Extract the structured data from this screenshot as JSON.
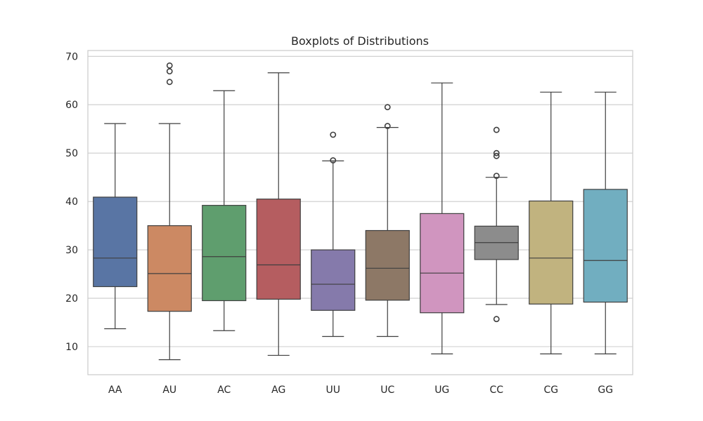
{
  "chart_data": {
    "type": "boxplot",
    "title": "Boxplots of Distributions",
    "xlabel": "",
    "ylabel": "",
    "ylim": [
      4.2,
      71.2
    ],
    "yticks": [
      10,
      20,
      30,
      40,
      50,
      60,
      70
    ],
    "grid": "horizontal",
    "categories": [
      "AA",
      "AU",
      "AC",
      "AG",
      "UU",
      "UC",
      "UG",
      "CC",
      "CG",
      "GG"
    ],
    "series": [
      {
        "category": "AA",
        "color": "#5975a4",
        "whisker_low": 13.7,
        "q1": 22.4,
        "median": 28.3,
        "q3": 40.9,
        "whisker_high": 56.1,
        "outliers": []
      },
      {
        "category": "AU",
        "color": "#cc8963",
        "whisker_low": 7.3,
        "q1": 17.3,
        "median": 25.1,
        "q3": 35.0,
        "whisker_high": 56.1,
        "outliers": [
          64.7,
          66.9,
          68.1
        ]
      },
      {
        "category": "AC",
        "color": "#5f9e6e",
        "whisker_low": 13.3,
        "q1": 19.5,
        "median": 28.6,
        "q3": 39.2,
        "whisker_high": 62.9,
        "outliers": []
      },
      {
        "category": "AG",
        "color": "#b55d60",
        "whisker_low": 8.2,
        "q1": 19.8,
        "median": 26.9,
        "q3": 40.5,
        "whisker_high": 66.6,
        "outliers": []
      },
      {
        "category": "UU",
        "color": "#857aab",
        "whisker_low": 12.1,
        "q1": 17.5,
        "median": 22.9,
        "q3": 30.0,
        "whisker_high": 48.4,
        "outliers": [
          48.5,
          53.8
        ]
      },
      {
        "category": "UC",
        "color": "#8d7866",
        "whisker_low": 12.1,
        "q1": 19.6,
        "median": 26.2,
        "q3": 34.0,
        "whisker_high": 55.3,
        "outliers": [
          55.6,
          59.5
        ]
      },
      {
        "category": "UG",
        "color": "#d095bf",
        "whisker_low": 8.5,
        "q1": 17.0,
        "median": 25.2,
        "q3": 37.5,
        "whisker_high": 64.5,
        "outliers": []
      },
      {
        "category": "CC",
        "color": "#8c8c8c",
        "whisker_low": 18.7,
        "q1": 28.0,
        "median": 31.5,
        "q3": 34.9,
        "whisker_high": 45.0,
        "outliers": [
          15.7,
          45.3,
          49.4,
          50.0,
          54.8
        ]
      },
      {
        "category": "CG",
        "color": "#c1b37f",
        "whisker_low": 8.5,
        "q1": 18.8,
        "median": 28.3,
        "q3": 40.1,
        "whisker_high": 62.6,
        "outliers": []
      },
      {
        "category": "GG",
        "color": "#71aec0",
        "whisker_low": 8.5,
        "q1": 19.2,
        "median": 27.8,
        "q3": 42.5,
        "whisker_high": 62.6,
        "outliers": []
      }
    ]
  }
}
